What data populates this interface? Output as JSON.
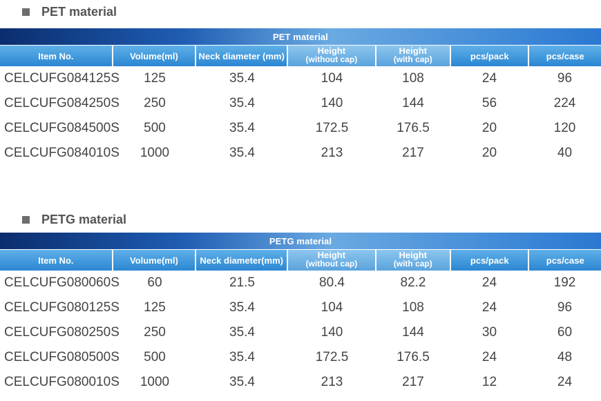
{
  "pet": {
    "section_title": "PET material",
    "banner": "PET material",
    "headers": [
      "Item No.",
      "Volume(ml)",
      "Neck diameter (mm)",
      "Height",
      "(without cap)",
      "Height",
      "(with cap)",
      "pcs/pack",
      "pcs/case"
    ],
    "rows": [
      [
        "CELCUFG084125S",
        "125",
        "35.4",
        "104",
        "108",
        "24",
        "96"
      ],
      [
        "CELCUFG084250S",
        "250",
        "35.4",
        "140",
        "144",
        "56",
        "224"
      ],
      [
        "CELCUFG084500S",
        "500",
        "35.4",
        "172.5",
        "176.5",
        "20",
        "120"
      ],
      [
        "CELCUFG084010S",
        "1000",
        "35.4",
        "213",
        "217",
        "20",
        "40"
      ]
    ]
  },
  "petg": {
    "section_title": "PETG material",
    "banner": "PETG material",
    "headers": [
      "Item No.",
      "Volume(ml)",
      "Neck diameter(mm)",
      "Height",
      "(without cap)",
      "Height",
      "(with cap)",
      "pcs/pack",
      "pcs/case"
    ],
    "rows": [
      [
        "CELCUFG080060S",
        "60",
        "21.5",
        "80.4",
        "82.2",
        "24",
        "192"
      ],
      [
        "CELCUFG080125S",
        "125",
        "35.4",
        "104",
        "108",
        "24",
        "96"
      ],
      [
        "CELCUFG080250S",
        "250",
        "35.4",
        "140",
        "144",
        "30",
        "60"
      ],
      [
        "CELCUFG080500S",
        "500",
        "35.4",
        "172.5",
        "176.5",
        "24",
        "48"
      ],
      [
        "CELCUFG080010S",
        "1000",
        "35.4",
        "213",
        "217",
        "12",
        "24"
      ]
    ]
  }
}
